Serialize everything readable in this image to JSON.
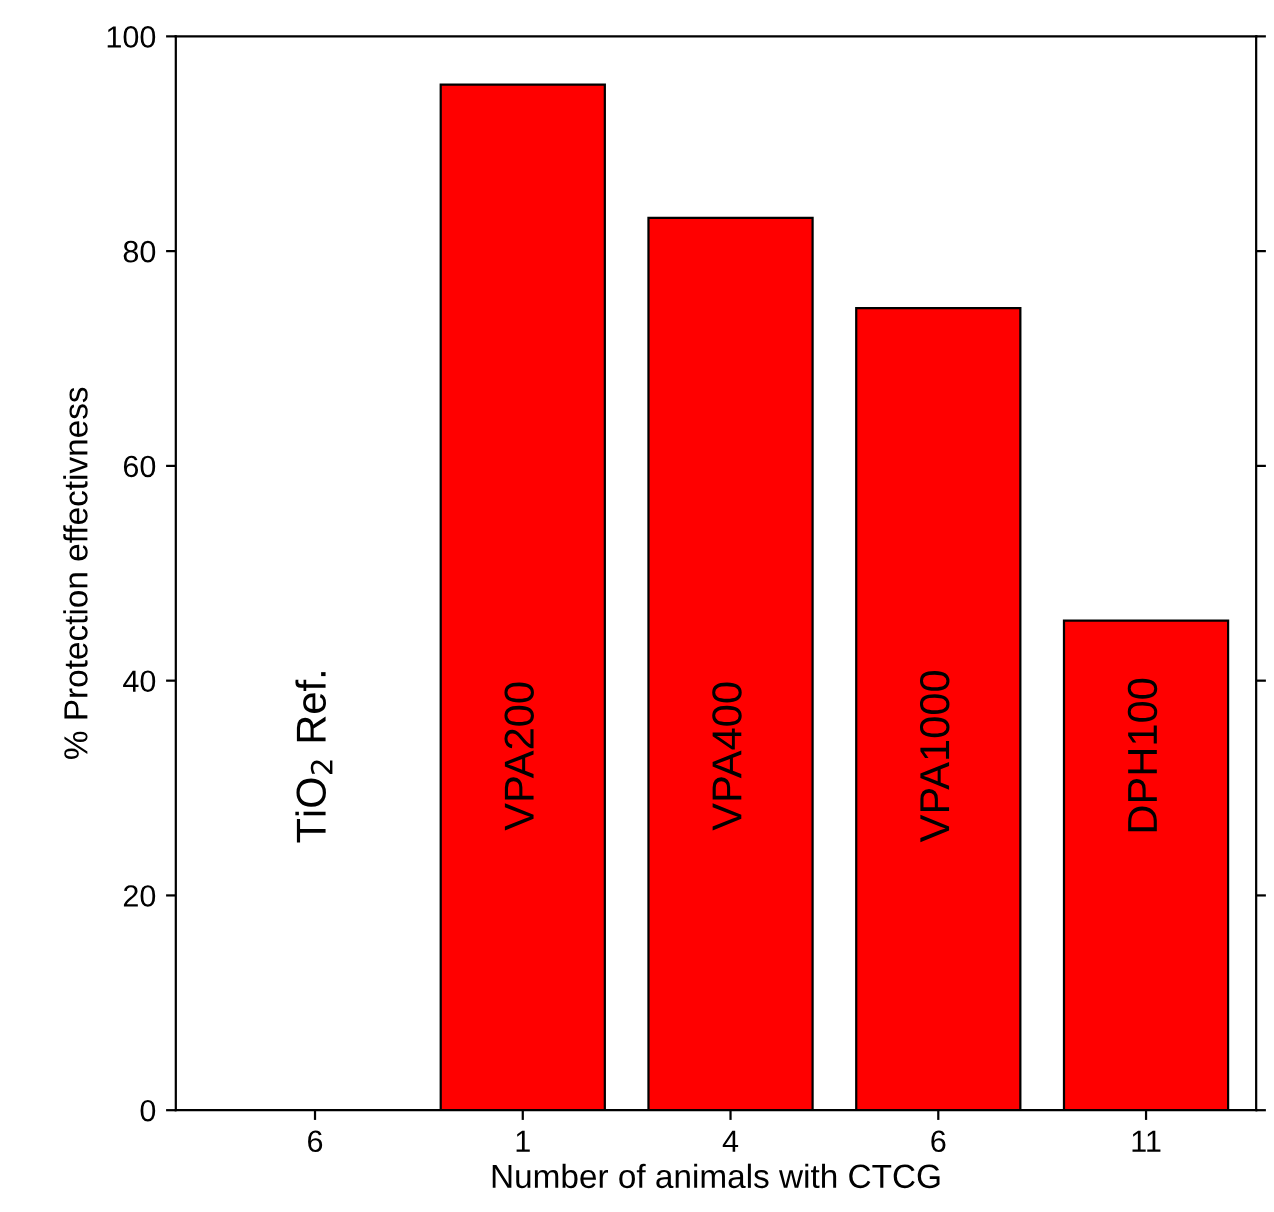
{
  "chart_data": {
    "type": "bar",
    "xlabel": "Number of animals with CTCG",
    "ylabel": "% Protection effectivness",
    "categories": [
      "6",
      "1",
      "4",
      "6",
      "11"
    ],
    "values": [
      null,
      95.5,
      83.1,
      74.7,
      45.6
    ],
    "color": "#ff0000",
    "annotations": [
      "TiO$_{2}$ Ref.",
      "VPA200",
      "VPA400",
      "VPA1000",
      "DPH100"
    ],
    "ylim": [
      0,
      100
    ],
    "yticks": [
      0,
      20,
      40,
      60,
      80,
      100
    ],
    "grid": false
  }
}
